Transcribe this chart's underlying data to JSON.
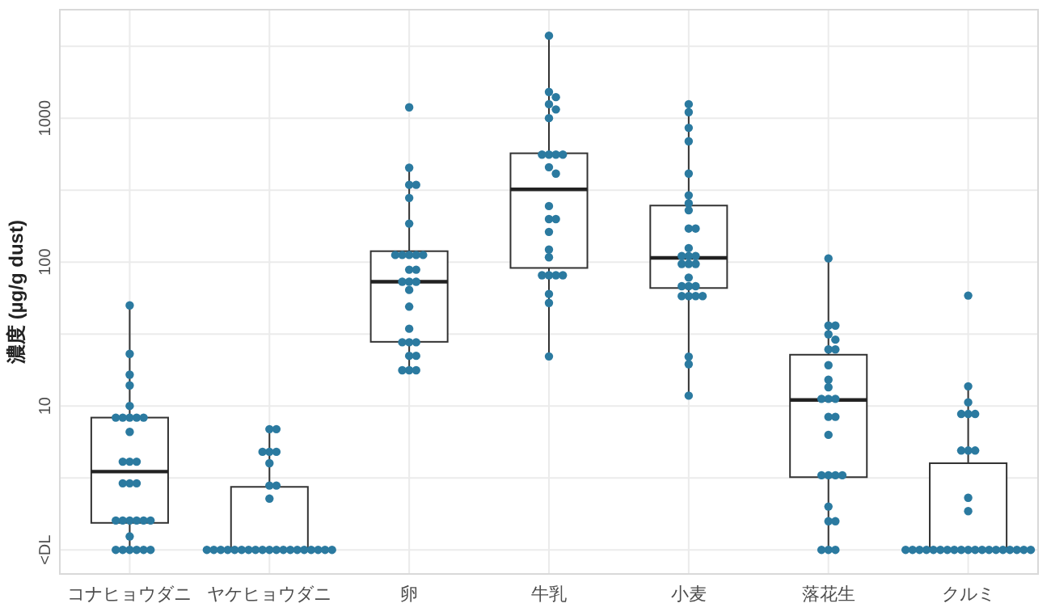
{
  "chart_data": {
    "type": "box",
    "ylabel": "濃度 (µg/g dust)",
    "categories": [
      "コナヒョウダニ",
      "ヤケヒョウダニ",
      "卵",
      "牛乳",
      "小麦",
      "落花生",
      "クルミ"
    ],
    "log": true,
    "ylim": [
      0.68,
      5670
    ],
    "grid": true,
    "yticks": [
      {
        "value": 1,
        "label": "<DL"
      },
      {
        "value": 3.16,
        "label": null
      },
      10,
      {
        "value": 31.6,
        "label": null
      },
      100,
      {
        "value": 316,
        "label": null
      },
      1000,
      {
        "value": 3160,
        "label": null
      }
    ],
    "boxes": [
      {
        "low": 1,
        "q1": 1.54,
        "median": 3.5,
        "q3": 8.3,
        "high": 50
      },
      {
        "low": 1,
        "q1": 1,
        "median": 1,
        "q3": 2.74,
        "high": 6.9
      },
      {
        "low": 17.7,
        "q1": 27.9,
        "median": 73,
        "q3": 119,
        "high": 452
      },
      {
        "low": 22.1,
        "q1": 91,
        "median": 320,
        "q3": 570,
        "high": 3740
      },
      {
        "low": 11.8,
        "q1": 66,
        "median": 107,
        "q3": 247,
        "high": 1250
      },
      {
        "low": 1,
        "q1": 3.2,
        "median": 11,
        "q3": 22.7,
        "high": 106
      },
      {
        "low": 1,
        "q1": 1,
        "median": 1,
        "q3": 4.0,
        "high": 13.7
      }
    ],
    "series": [
      {
        "type": "scatter",
        "color": "#2b7aa0",
        "x": [
          "コナヒョウダニ",
          "コナヒョウダニ",
          "コナヒョウダニ",
          "コナヒョウダニ",
          "コナヒョウダニ",
          "コナヒョウダニ",
          "コナヒョウダニ",
          "コナヒョウダニ",
          "コナヒョウダニ",
          "コナヒョウダニ",
          "コナヒョウダニ",
          "コナヒョウダニ",
          "コナヒョウダニ",
          "コナヒョウダニ",
          "コナヒョウダニ",
          "コナヒョウダニ",
          "コナヒョウダニ",
          "コナヒョウダニ",
          "コナヒョウダニ",
          "コナヒョウダニ",
          "コナヒョウダニ",
          "コナヒョウダニ",
          "コナヒョウダニ",
          "コナヒョウダニ",
          "コナヒョウダニ",
          "コナヒョウダニ",
          "コナヒョウダニ",
          "コナヒョウダニ",
          "コナヒョウダニ",
          "コナヒョウダニ"
        ],
        "values": [
          50,
          23,
          16.5,
          13.9,
          10,
          8.3,
          8.3,
          8.3,
          8.3,
          8.3,
          6.6,
          4.1,
          4.1,
          4.1,
          2.9,
          2.9,
          2.9,
          1.6,
          1.6,
          1.6,
          1.6,
          1.6,
          1.6,
          1.24,
          1,
          1,
          1,
          1,
          1,
          1
        ]
      },
      {
        "type": "scatter",
        "color": "#2b7aa0",
        "x": [
          "ヤケヒョウダニ",
          "ヤケヒョウダニ",
          "ヤケヒョウダニ",
          "ヤケヒョウダニ",
          "ヤケヒョウダニ",
          "ヤケヒョウダニ",
          "ヤケヒョウダニ",
          "ヤケヒョウダニ",
          "ヤケヒョウダニ",
          "ヤケヒョウダニ",
          "ヤケヒョウダニ",
          "ヤケヒョウダニ",
          "ヤケヒョウダニ",
          "ヤケヒョウダニ",
          "ヤケヒョウダニ",
          "ヤケヒョウダニ",
          "ヤケヒョウダニ",
          "ヤケヒョウダニ",
          "ヤケヒョウダニ",
          "ヤケヒョウダニ",
          "ヤケヒョウダニ",
          "ヤケヒョウダニ",
          "ヤケヒョウダニ",
          "ヤケヒョウダニ",
          "ヤケヒョウダニ",
          "ヤケヒョウダニ",
          "ヤケヒョウダニ",
          "ヤケヒョウダニ"
        ],
        "values": [
          6.9,
          6.9,
          4.8,
          4.8,
          4.8,
          4.0,
          2.8,
          2.8,
          2.27,
          1,
          1,
          1,
          1,
          1,
          1,
          1,
          1,
          1,
          1,
          1,
          1,
          1,
          1,
          1,
          1,
          1,
          1,
          1
        ]
      },
      {
        "type": "scatter",
        "color": "#2b7aa0",
        "x": [
          "卵",
          "卵",
          "卵",
          "卵",
          "卵",
          "卵",
          "卵",
          "卵",
          "卵",
          "卵",
          "卵",
          "卵",
          "卵",
          "卵",
          "卵",
          "卵",
          "卵",
          "卵",
          "卵",
          "卵",
          "卵",
          "卵",
          "卵",
          "卵",
          "卵",
          "卵",
          "卵"
        ],
        "values": [
          1190,
          452,
          344,
          344,
          279,
          185,
          112,
          112,
          112,
          112,
          112,
          88.5,
          88.5,
          73,
          73,
          73,
          64,
          49,
          34.4,
          27.7,
          27.7,
          27.7,
          22.3,
          22.3,
          17.7,
          17.7,
          17.7
        ]
      },
      {
        "type": "scatter",
        "color": "#2b7aa0",
        "x": [
          "牛乳",
          "牛乳",
          "牛乳",
          "牛乳",
          "牛乳",
          "牛乳",
          "牛乳",
          "牛乳",
          "牛乳",
          "牛乳",
          "牛乳",
          "牛乳",
          "牛乳",
          "牛乳",
          "牛乳",
          "牛乳",
          "牛乳",
          "牛乳",
          "牛乳",
          "牛乳",
          "牛乳",
          "牛乳",
          "牛乳",
          "牛乳",
          "牛乳"
        ],
        "values": [
          3740,
          1520,
          1400,
          1250,
          1150,
          1000,
          558,
          558,
          558,
          558,
          456,
          412,
          245,
          199,
          199,
          162,
          122,
          108,
          81,
          81,
          81,
          81,
          60,
          52,
          22.1
        ]
      },
      {
        "type": "scatter",
        "color": "#2b7aa0",
        "x": [
          "小麦",
          "小麦",
          "小麦",
          "小麦",
          "小麦",
          "小麦",
          "小麦",
          "小麦",
          "小麦",
          "小麦",
          "小麦",
          "小麦",
          "小麦",
          "小麦",
          "小麦",
          "小麦",
          "小麦",
          "小麦",
          "小麦",
          "小麦",
          "小麦",
          "小麦",
          "小麦",
          "小麦",
          "小麦",
          "小麦",
          "小麦",
          "小麦"
        ],
        "values": [
          1250,
          1100,
          857,
          691,
          412,
          291,
          256,
          229,
          171,
          171,
          125,
          110,
          110,
          110,
          97,
          97,
          97,
          78,
          68,
          68,
          68,
          58,
          58,
          58,
          58,
          22,
          19.5,
          11.8
        ]
      },
      {
        "type": "scatter",
        "color": "#2b7aa0",
        "x": [
          "落花生",
          "落花生",
          "落花生",
          "落花生",
          "落花生",
          "落花生",
          "落花生",
          "落花生",
          "落花生",
          "落花生",
          "落花生",
          "落花生",
          "落花生",
          "落花生",
          "落花生",
          "落花生",
          "落花生",
          "落花生",
          "落花生",
          "落花生",
          "落花生",
          "落花生",
          "落花生",
          "落花生",
          "落花生",
          "落花生"
        ],
        "values": [
          106,
          36.2,
          36.2,
          31.5,
          28.9,
          24.7,
          24.7,
          19.2,
          15.2,
          13.5,
          11.2,
          11.2,
          11.2,
          8.4,
          8.4,
          6.3,
          3.3,
          3.3,
          3.3,
          3.3,
          2.0,
          1.58,
          1.58,
          1,
          1,
          1
        ]
      },
      {
        "type": "scatter",
        "color": "#2b7aa0",
        "x": [
          "クルミ",
          "クルミ",
          "クルミ",
          "クルミ",
          "クルミ",
          "クルミ",
          "クルミ",
          "クルミ",
          "クルミ",
          "クルミ",
          "クルミ",
          "クルミ",
          "クルミ",
          "クルミ",
          "クルミ",
          "クルミ",
          "クルミ",
          "クルミ",
          "クルミ",
          "クルミ",
          "クルミ",
          "クルミ",
          "クルミ",
          "クルミ",
          "クルミ",
          "クルミ",
          "クルミ",
          "クルミ",
          "クルミ",
          "クルミ"
        ],
        "values": [
          58.5,
          13.7,
          10.6,
          8.8,
          8.8,
          8.8,
          4.9,
          4.9,
          4.9,
          2.3,
          1.86,
          1,
          1,
          1,
          1,
          1,
          1,
          1,
          1,
          1,
          1,
          1,
          1,
          1,
          1,
          1,
          1,
          1,
          1,
          1
        ]
      }
    ]
  }
}
